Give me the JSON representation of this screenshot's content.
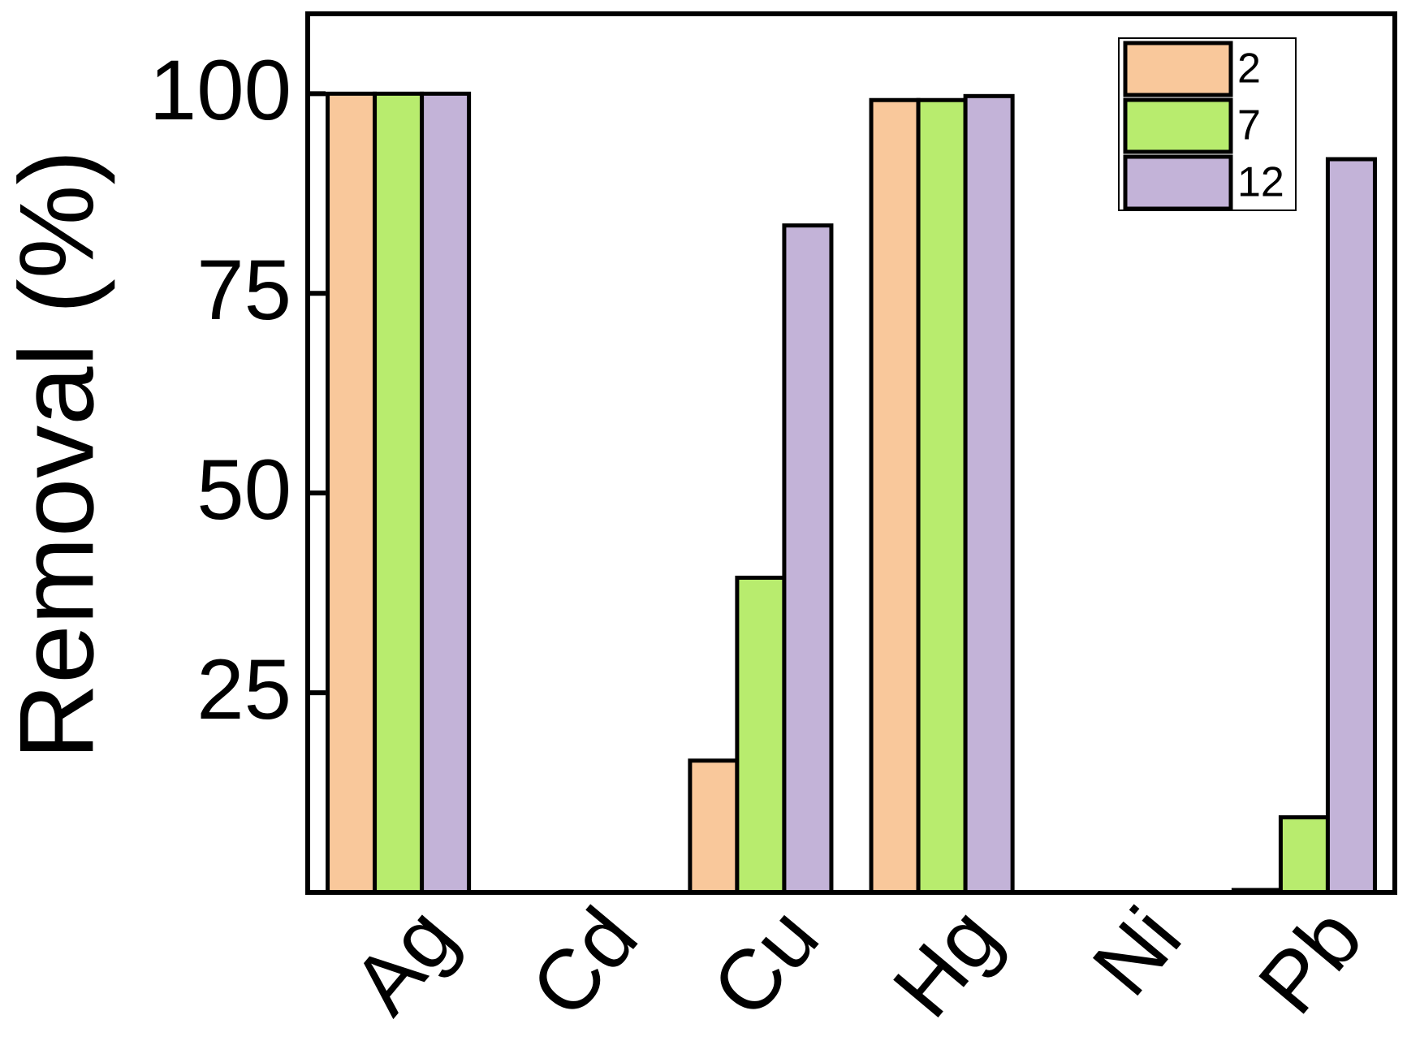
{
  "chart_data": {
    "type": "bar",
    "y_label": "Removal (%)",
    "categories": [
      "Ag",
      "Cd",
      "Cu",
      "Hg",
      "Ni",
      "Pb"
    ],
    "series": [
      {
        "name": "2",
        "color": "#f9c89b",
        "values": [
          100,
          0,
          16.5,
          99.2,
          0,
          0.3
        ]
      },
      {
        "name": "7",
        "color": "#b8ec6e",
        "values": [
          100,
          0,
          39.4,
          99.2,
          0,
          9.4
        ]
      },
      {
        "name": "12",
        "color": "#c3b3d8",
        "values": [
          100,
          0,
          83.5,
          99.7,
          0,
          91.8
        ]
      }
    ],
    "ylim": [
      0,
      110
    ],
    "yticks": [
      25,
      50,
      75,
      100
    ],
    "legend": "top-right"
  }
}
